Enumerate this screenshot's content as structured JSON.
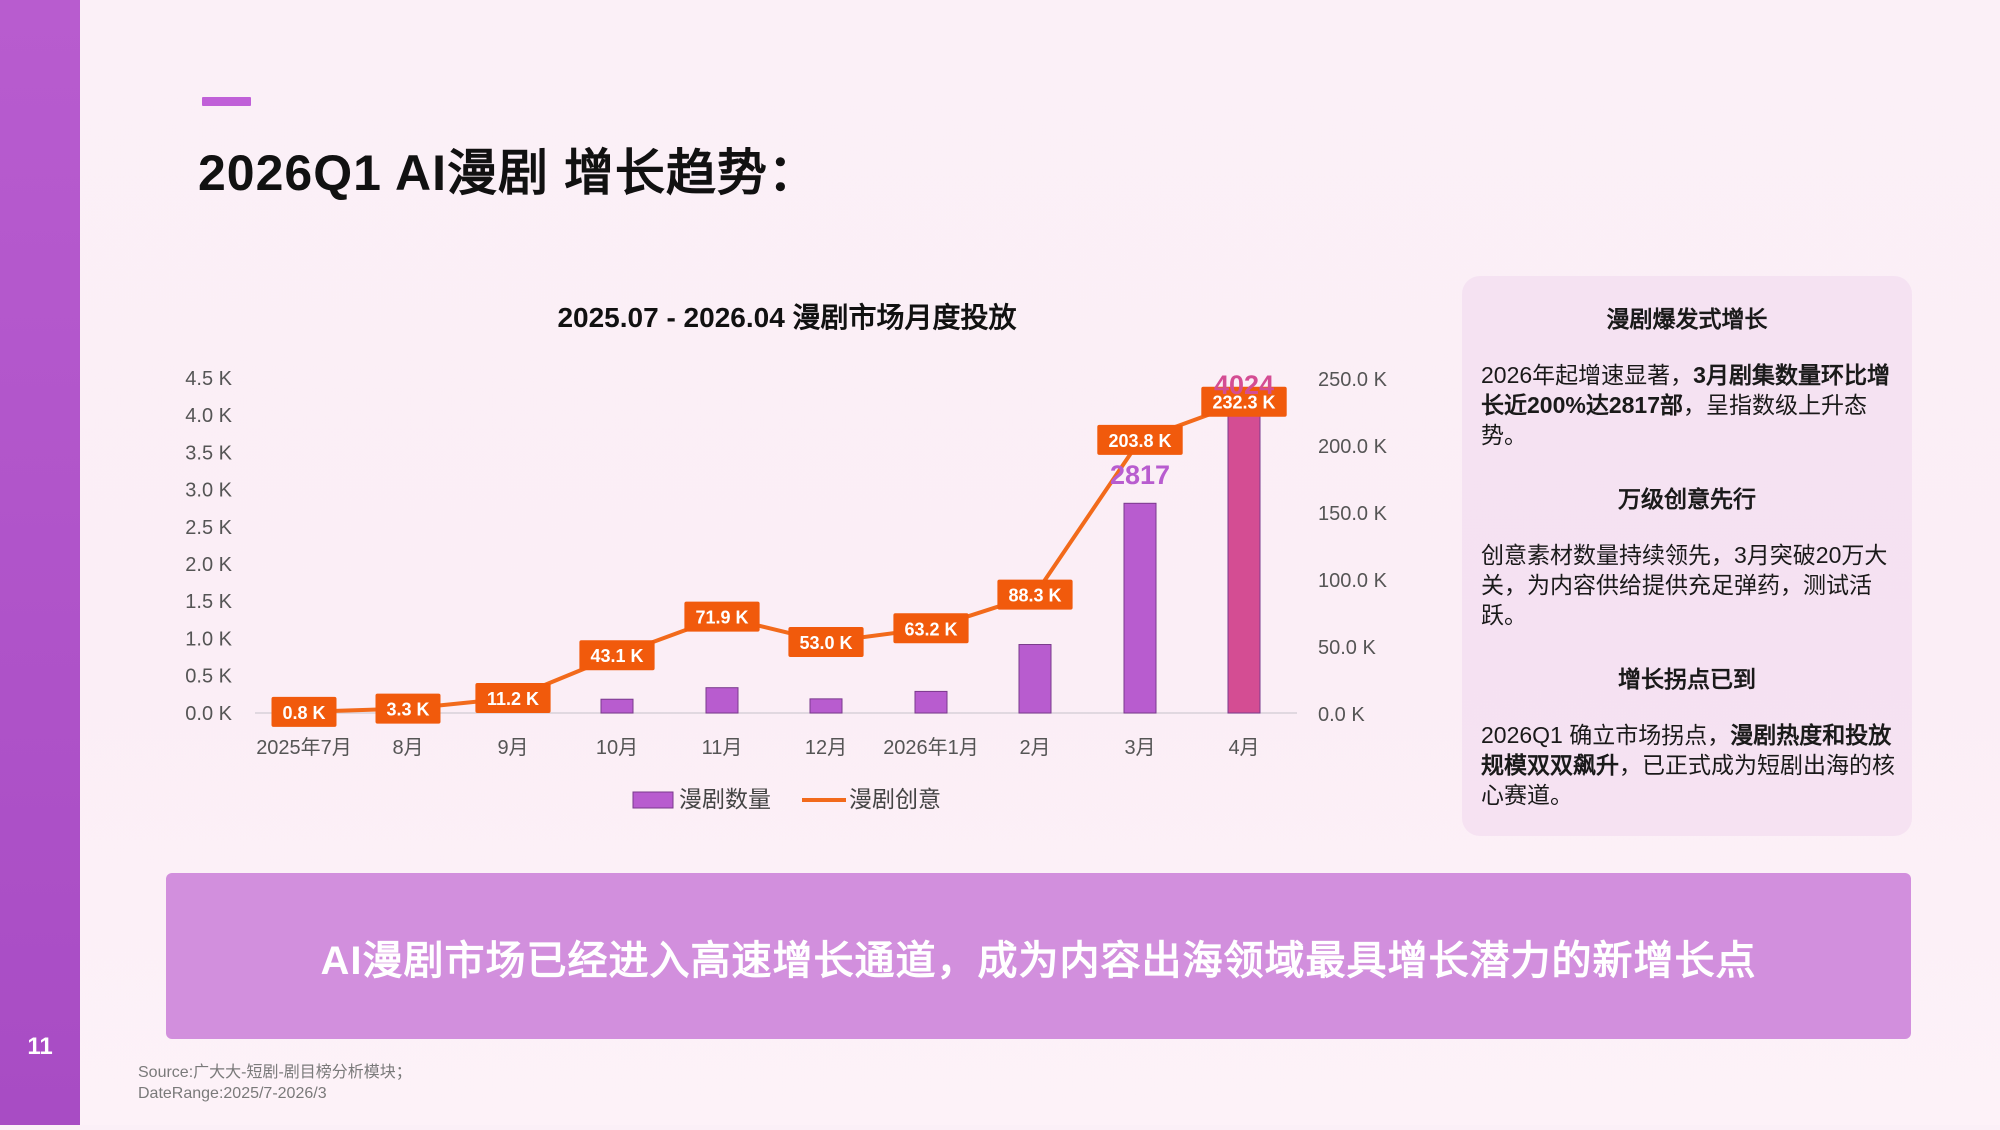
{
  "page_number": "11",
  "title": "2026Q1 AI漫剧 增长趋势：",
  "chart_data": {
    "type": "bar",
    "title": "2025.07 - 2026.04 漫剧市场月度投放",
    "categories": [
      "2025年7月",
      "8月",
      "9月",
      "10月",
      "11月",
      "12月",
      "2026年1月",
      "2月",
      "3月",
      "4月"
    ],
    "left_axis_ticks": [
      "4.5 K",
      "4.0 K",
      "3.5 K",
      "3.0 K",
      "2.5 K",
      "2.0 K",
      "1.5 K",
      "1.0 K",
      "0.5 K",
      "0.0 K"
    ],
    "right_axis_ticks": [
      "250.0 K",
      "200.0 K",
      "150.0 K",
      "100.0 K",
      "50.0 K",
      "0.0 K"
    ],
    "ylim_left": [
      0,
      4500
    ],
    "ylim_right": [
      0,
      250000
    ],
    "series": [
      {
        "name": "漫剧数量",
        "type": "bar",
        "axis": "left",
        "color": "#b85ccf",
        "highlight_color": "#d44d93",
        "values": [
          0,
          0,
          0,
          185,
          340,
          190,
          290,
          920,
          2817,
          4024
        ]
      },
      {
        "name": "漫剧创意",
        "type": "line",
        "axis": "right",
        "color": "#f26a1b",
        "values": [
          800,
          3300,
          11200,
          43100,
          71900,
          53000,
          63200,
          88300,
          203800,
          232300
        ],
        "labels": [
          "0.8 K",
          "3.3 K",
          "11.2 K",
          "43.1 K",
          "71.9 K",
          "53.0 K",
          "63.2 K",
          "88.3 K",
          "203.8 K",
          "232.3 K"
        ]
      }
    ],
    "annotations": [
      {
        "category": "3月",
        "text": "2817",
        "color": "#b85ccf"
      },
      {
        "category": "4月",
        "text": "4024",
        "color": "#d44d93"
      }
    ],
    "legend": [
      "漫剧数量",
      "漫剧创意"
    ],
    "legend_position": "bottom",
    "grid": false
  },
  "panel": {
    "head1": "漫剧爆发式增长",
    "body1_pre": "2026年起增速显著，",
    "body1_bold": "3月剧集数量环比增长近200%达2817部",
    "body1_post": "，呈指数级上升态势。",
    "head2": "万级创意先行",
    "body2": "创意素材数量持续领先，3月突破20万大关，为内容供给提供充足弹药，测试活跃。",
    "head3": "增长拐点已到",
    "body3_pre": "2026Q1 确立市场拐点，",
    "body3_bold": "漫剧热度和投放规模双双飙升",
    "body3_post": "，已正式成为短剧出海的核心赛道。"
  },
  "banner": "AI漫剧市场已经进入高速增长通道，成为内容出海领域最具增长潜力的新增长点",
  "source": {
    "line1": "Source:广大大-短剧-剧目榜分析模块；",
    "line2": "DateRange:2025/7-2026/3"
  }
}
